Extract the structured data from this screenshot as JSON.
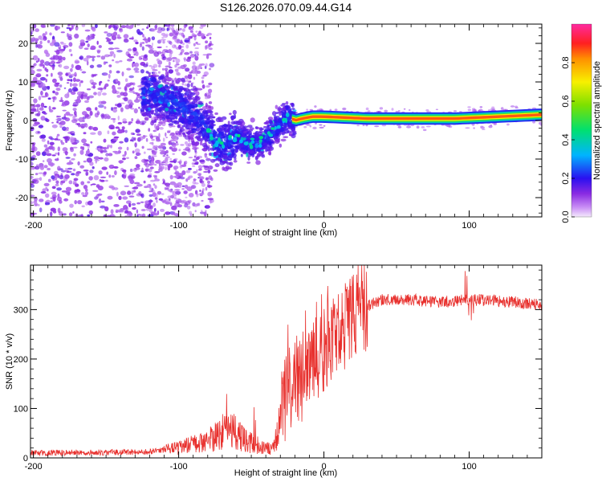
{
  "figure": {
    "title": "S126.2026.070.09.44.G14"
  },
  "chart_data": [
    {
      "type": "heatmap",
      "name": "spectrogram",
      "xlabel": "Height of straight line (km)",
      "ylabel": "Frequency (Hz)",
      "xlim": [
        -202,
        150
      ],
      "ylim": [
        -25,
        25
      ],
      "x_ticks": [
        -200,
        -100,
        0,
        100
      ],
      "y_ticks": [
        -20,
        -10,
        0,
        10,
        20
      ],
      "x_tick_labels": [
        "-200",
        "-100",
        "0",
        "100"
      ],
      "y_tick_labels": [
        "-20",
        "-10",
        "0",
        "10",
        "20"
      ],
      "ridge": [
        {
          "x": -120,
          "y": 7
        },
        {
          "x": -105,
          "y": 5
        },
        {
          "x": -95,
          "y": 3
        },
        {
          "x": -85,
          "y": 0
        },
        {
          "x": -75,
          "y": -5
        },
        {
          "x": -68,
          "y": -6
        },
        {
          "x": -60,
          "y": -4
        },
        {
          "x": -52,
          "y": -6
        },
        {
          "x": -45,
          "y": -6
        },
        {
          "x": -38,
          "y": -4
        },
        {
          "x": -30,
          "y": -1
        },
        {
          "x": -25,
          "y": 1
        },
        {
          "x": -20,
          "y": 0
        },
        {
          "x": -15,
          "y": 0.5
        },
        {
          "x": -8,
          "y": 1
        },
        {
          "x": 0,
          "y": 1
        },
        {
          "x": 30,
          "y": 0.5
        },
        {
          "x": 60,
          "y": 0.5
        },
        {
          "x": 90,
          "y": 0.5
        },
        {
          "x": 120,
          "y": 1
        },
        {
          "x": 150,
          "y": 1.5
        }
      ],
      "colorbar": {
        "label": "Normalized spectral amplitude",
        "range": [
          0,
          1
        ],
        "ticks": [
          0.0,
          0.2,
          0.4,
          0.6,
          0.8
        ],
        "tick_labels": [
          "0.0",
          "0.2",
          "0.4",
          "0.6",
          "0.8"
        ]
      }
    },
    {
      "type": "line",
      "name": "snr",
      "xlabel": "Height of straight line (km)",
      "ylabel": "SNR (10 * v/v)",
      "xlim": [
        -202,
        150
      ],
      "ylim": [
        0,
        390
      ],
      "x_ticks": [
        -200,
        -100,
        0,
        100
      ],
      "y_ticks": [
        0,
        100,
        200,
        300
      ],
      "x_tick_labels": [
        "-200",
        "-100",
        "0",
        "100"
      ],
      "y_tick_labels": [
        "0",
        "100",
        "200",
        "300"
      ],
      "color": "#e8312e",
      "envelope": [
        {
          "x": -202,
          "y": 10
        },
        {
          "x": -120,
          "y": 12
        },
        {
          "x": -100,
          "y": 20
        },
        {
          "x": -80,
          "y": 35
        },
        {
          "x": -65,
          "y": 60
        },
        {
          "x": -55,
          "y": 40
        },
        {
          "x": -45,
          "y": 20
        },
        {
          "x": -35,
          "y": 20
        },
        {
          "x": -30,
          "y": 80
        },
        {
          "x": -25,
          "y": 140
        },
        {
          "x": -15,
          "y": 160
        },
        {
          "x": -5,
          "y": 200
        },
        {
          "x": 5,
          "y": 240
        },
        {
          "x": 15,
          "y": 270
        },
        {
          "x": 25,
          "y": 300
        },
        {
          "x": 40,
          "y": 320
        },
        {
          "x": 60,
          "y": 320
        },
        {
          "x": 80,
          "y": 315
        },
        {
          "x": 100,
          "y": 320
        },
        {
          "x": 120,
          "y": 318
        },
        {
          "x": 150,
          "y": 310
        }
      ]
    }
  ]
}
